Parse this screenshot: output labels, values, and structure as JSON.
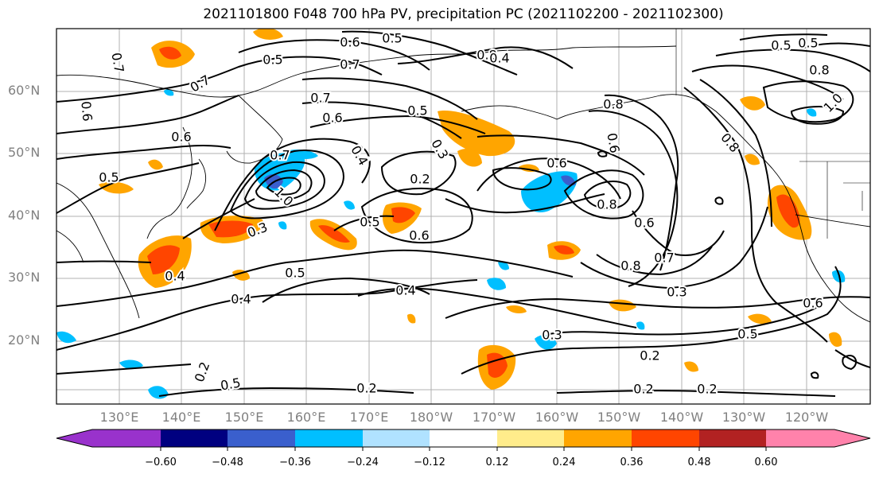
{
  "title": "2021101800 F048 700 hPa PV, precipitation PC (2021102200 - 2021102300)",
  "lat_labels": [
    "60°N",
    "50°N",
    "40°N",
    "30°N",
    "20°N"
  ],
  "lon_labels": [
    "130°E",
    "140°E",
    "150°E",
    "160°E",
    "170°E",
    "180°W",
    "170°W",
    "160°W",
    "150°W",
    "140°W",
    "130°W",
    "120°W"
  ],
  "contour_labels": [
    "0.5",
    "0.6",
    "0.8",
    "0.7",
    "0.5",
    "0.4",
    "0.7",
    "0.7",
    "0.5",
    "0.8",
    "0.5",
    "0.7",
    "0.8",
    "1.0",
    "0.6",
    "0.6",
    "0.5",
    "0.8",
    "0.6",
    "0.4",
    "0.3",
    "0.2",
    "0.6",
    "0.7",
    "0.8",
    "0.6",
    "0.5",
    "0.6",
    "0.5",
    "0.4",
    "0.8",
    "0.7",
    "0.6",
    "0.5",
    "0.3",
    "0.4",
    "0.3",
    "0.2",
    "0.2",
    "0.2",
    "0.2",
    "0.5",
    "0.6",
    "0.4",
    "0.3",
    "1.0",
    "0.4",
    "0.2",
    "0.5"
  ],
  "colorbar": {
    "ticks": [
      "−0.60",
      "−0.48",
      "−0.36",
      "−0.24",
      "−0.12",
      "0.12",
      "0.24",
      "0.36",
      "0.48",
      "0.60"
    ],
    "colors": [
      "#9932CC",
      "#000080",
      "#3A5FCD",
      "#00BFFF",
      "#B0E2FF",
      "#FFFFFF",
      "#FFEC8B",
      "#FFA500",
      "#FF4500",
      "#B22222",
      "#FF82AB"
    ]
  }
}
